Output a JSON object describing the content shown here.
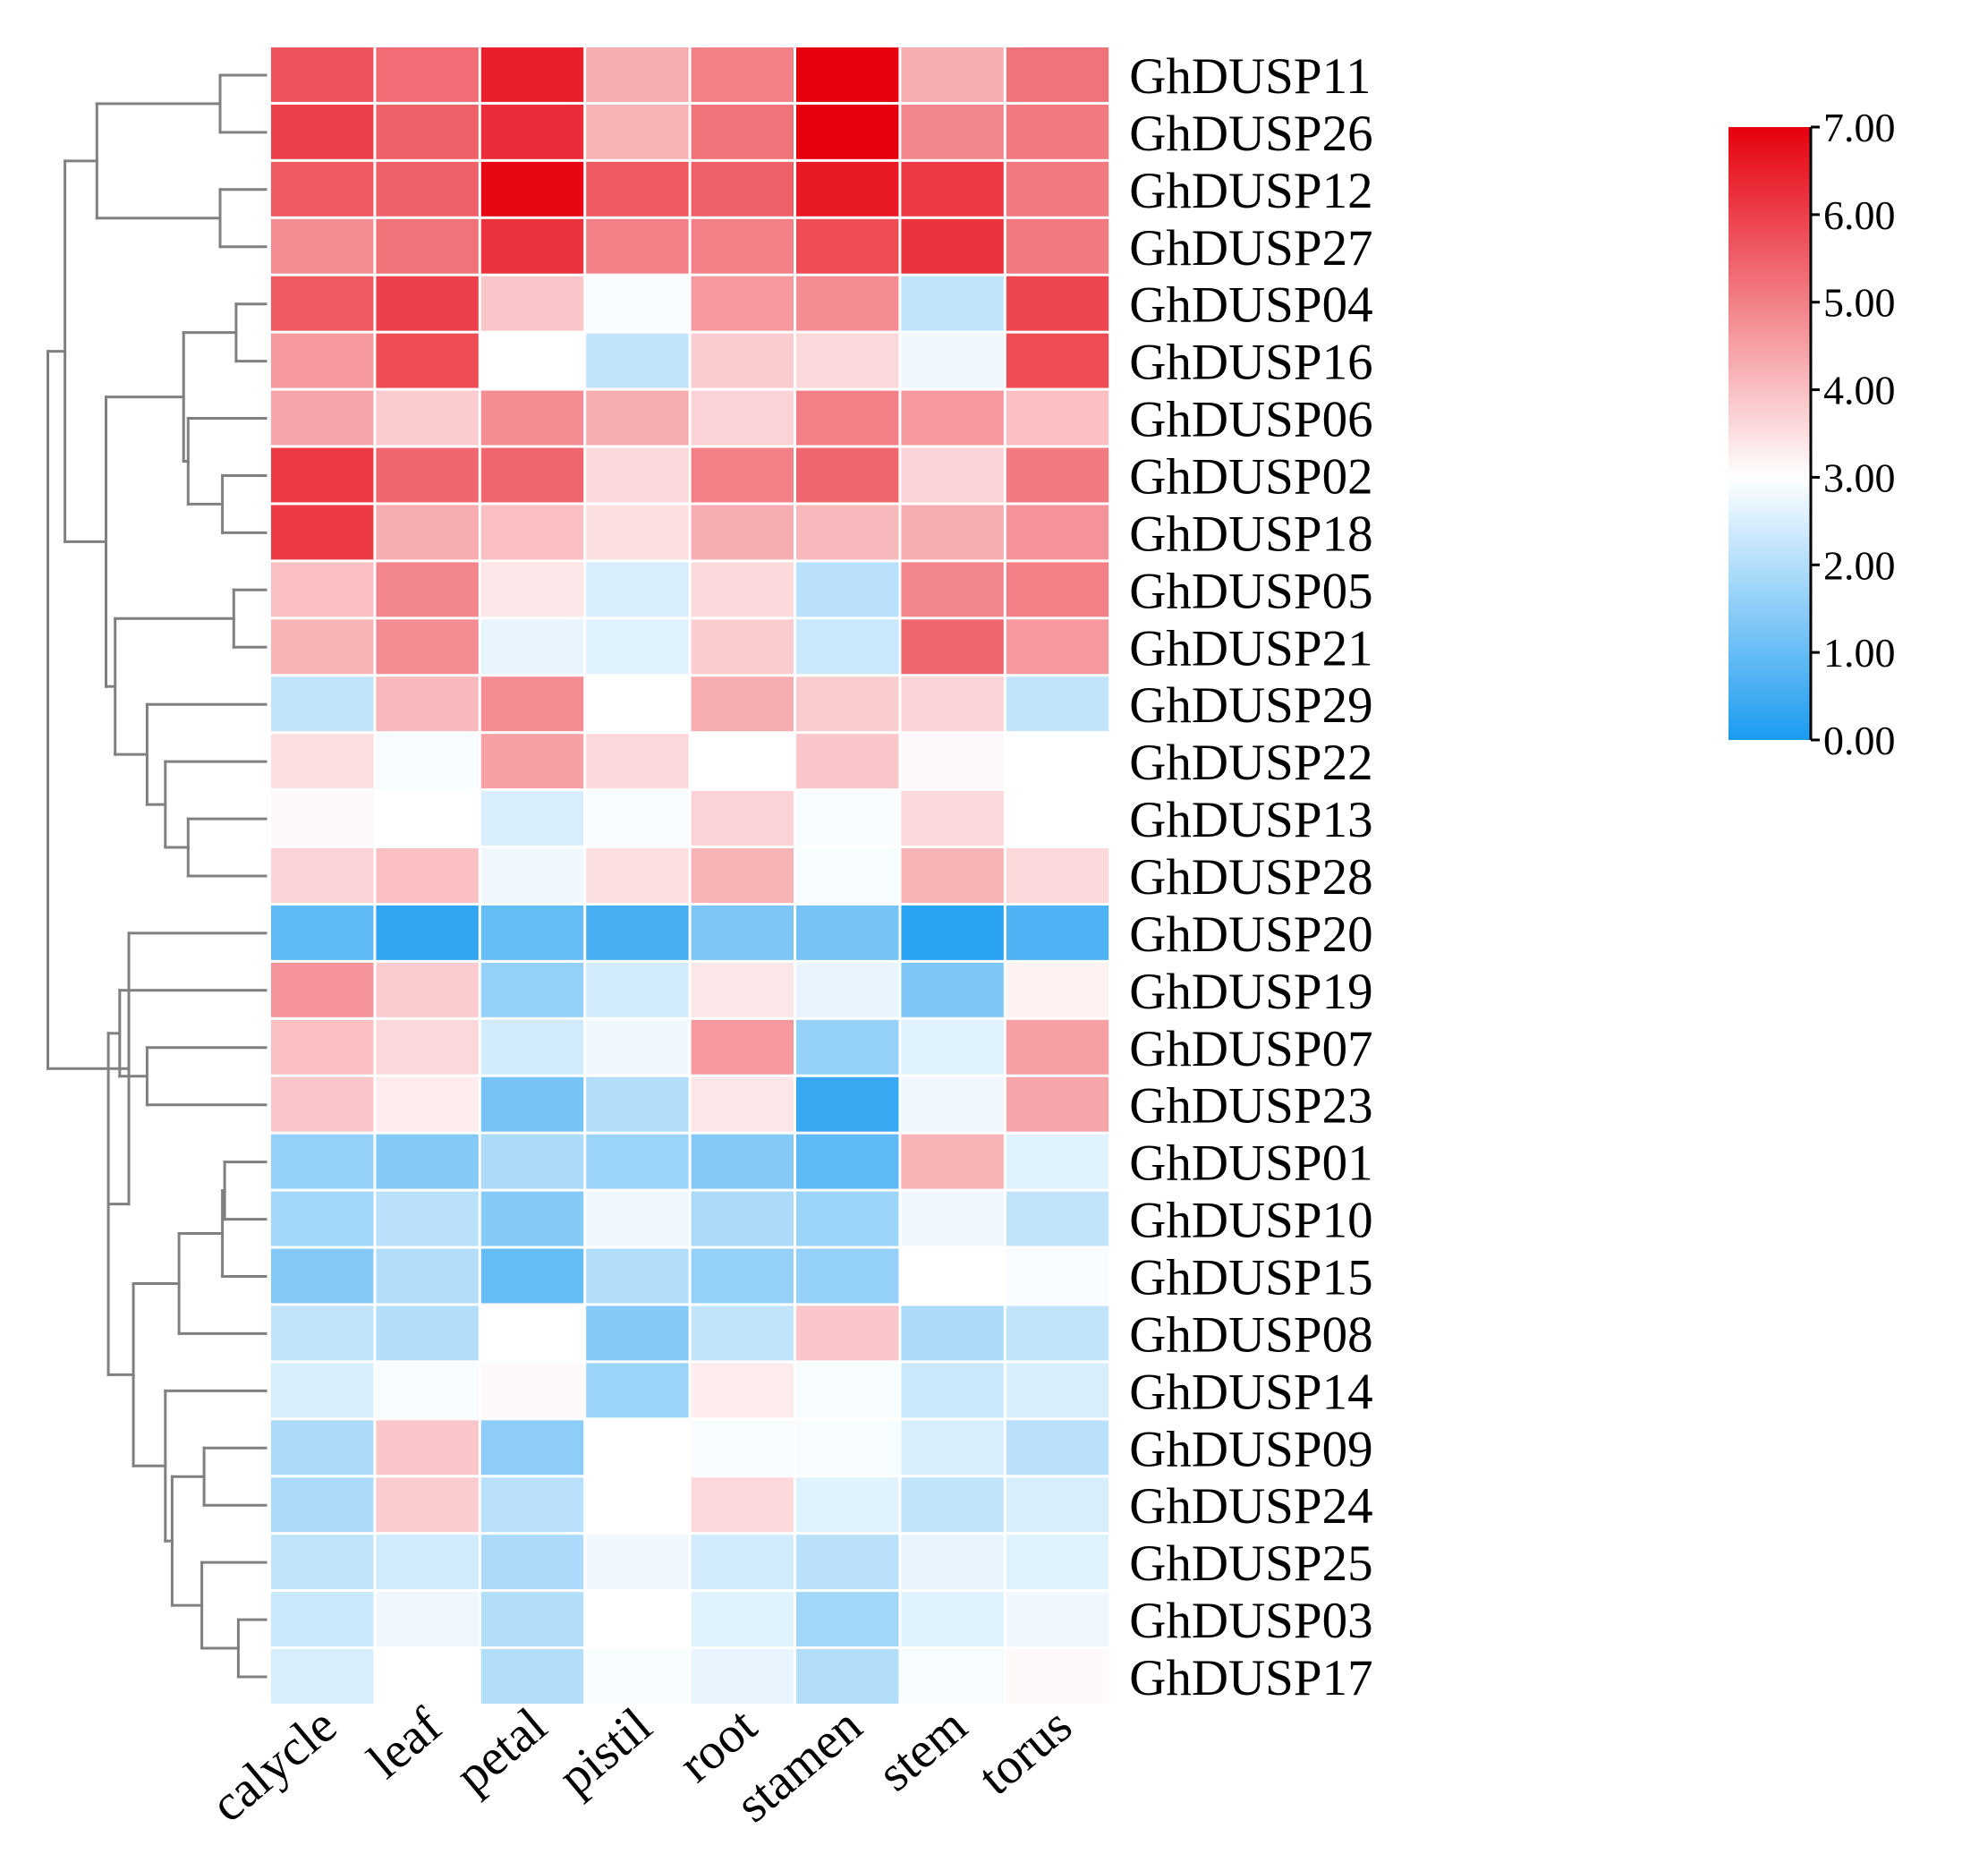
{
  "chart_data": {
    "type": "heatmap",
    "title": "",
    "columns": [
      "calycle",
      "leaf",
      "petal",
      "pistil",
      "root",
      "stamen",
      "stem",
      "torus"
    ],
    "rows": [
      "GhDUSP11",
      "GhDUSP26",
      "GhDUSP12",
      "GhDUSP27",
      "GhDUSP04",
      "GhDUSP16",
      "GhDUSP06",
      "GhDUSP02",
      "GhDUSP18",
      "GhDUSP05",
      "GhDUSP21",
      "GhDUSP29",
      "GhDUSP22",
      "GhDUSP13",
      "GhDUSP28",
      "GhDUSP20",
      "GhDUSP19",
      "GhDUSP07",
      "GhDUSP23",
      "GhDUSP01",
      "GhDUSP10",
      "GhDUSP15",
      "GhDUSP08",
      "GhDUSP14",
      "GhDUSP09",
      "GhDUSP24",
      "GhDUSP25",
      "GhDUSP03",
      "GhDUSP17"
    ],
    "values": [
      [
        5.7,
        5.3,
        6.5,
        4.3,
        5.0,
        7.0,
        4.3,
        5.2
      ],
      [
        6.0,
        5.5,
        6.3,
        4.2,
        5.2,
        7.0,
        4.9,
        5.1
      ],
      [
        5.6,
        5.5,
        6.9,
        5.6,
        5.5,
        6.6,
        6.1,
        5.1
      ],
      [
        4.8,
        5.2,
        6.2,
        5.0,
        5.0,
        5.8,
        6.2,
        5.1
      ],
      [
        5.6,
        6.0,
        3.9,
        2.9,
        4.6,
        4.8,
        2.2,
        5.9
      ],
      [
        4.6,
        5.8,
        3.0,
        2.2,
        3.8,
        3.6,
        2.8,
        5.8
      ],
      [
        4.4,
        3.8,
        4.8,
        4.3,
        3.7,
        5.0,
        4.6,
        4.0
      ],
      [
        6.1,
        5.4,
        5.4,
        3.6,
        5.0,
        5.4,
        3.7,
        5.1
      ],
      [
        6.1,
        4.3,
        4.0,
        3.5,
        4.3,
        4.1,
        4.3,
        4.7
      ],
      [
        4.0,
        4.9,
        3.4,
        2.5,
        3.6,
        2.1,
        4.9,
        5.0
      ],
      [
        4.2,
        4.8,
        2.7,
        2.6,
        3.8,
        2.3,
        5.4,
        4.6
      ],
      [
        2.2,
        4.1,
        4.8,
        3.0,
        4.3,
        3.8,
        3.7,
        2.2
      ],
      [
        3.5,
        2.9,
        4.5,
        3.6,
        3.0,
        3.9,
        3.1,
        3.0
      ],
      [
        3.1,
        3.0,
        2.5,
        2.9,
        3.7,
        2.9,
        3.6,
        3.0
      ],
      [
        3.7,
        4.0,
        2.8,
        3.5,
        4.2,
        2.9,
        4.2,
        3.6
      ],
      [
        0.9,
        0.3,
        1.0,
        0.6,
        1.3,
        1.2,
        0.2,
        0.7
      ],
      [
        4.7,
        3.8,
        1.6,
        2.4,
        3.4,
        2.7,
        1.3,
        3.2
      ],
      [
        4.0,
        3.6,
        2.4,
        2.8,
        4.6,
        1.6,
        2.6,
        4.5
      ],
      [
        3.9,
        3.3,
        1.2,
        2.0,
        3.4,
        0.4,
        2.8,
        4.4
      ],
      [
        1.6,
        1.4,
        1.9,
        1.7,
        1.4,
        0.9,
        4.2,
        2.6
      ],
      [
        1.8,
        2.1,
        1.4,
        2.8,
        1.9,
        1.7,
        2.8,
        2.2
      ],
      [
        1.4,
        2.0,
        1.0,
        2.0,
        1.6,
        1.6,
        3.0,
        2.9
      ],
      [
        2.2,
        2.0,
        3.0,
        1.4,
        2.2,
        3.9,
        1.9,
        2.2
      ],
      [
        2.5,
        2.9,
        3.1,
        1.7,
        3.3,
        2.9,
        2.3,
        2.5
      ],
      [
        1.9,
        3.9,
        1.5,
        3.0,
        2.9,
        2.9,
        2.5,
        2.1
      ],
      [
        1.9,
        3.8,
        2.1,
        3.0,
        3.6,
        2.6,
        2.2,
        2.5
      ],
      [
        2.2,
        2.4,
        1.9,
        2.8,
        2.4,
        2.1,
        2.7,
        2.6
      ],
      [
        2.3,
        2.8,
        2.0,
        3.0,
        2.6,
        1.8,
        2.6,
        2.8
      ],
      [
        2.5,
        3.0,
        2.0,
        2.9,
        2.7,
        2.0,
        2.9,
        3.1
      ]
    ],
    "colorbar": {
      "min": 0.0,
      "max": 7.0,
      "mid": 3.0,
      "ticks": [
        "0.00",
        "1.00",
        "2.00",
        "3.00",
        "4.00",
        "5.00",
        "6.00",
        "7.00"
      ],
      "colors": {
        "low": "#1a9bf0",
        "mid": "#ffffff",
        "high": "#e6000e"
      }
    },
    "dendrogram": {
      "side": "left",
      "color": "#808080",
      "leaf_order": [
        "GhDUSP11",
        "GhDUSP26",
        "GhDUSP12",
        "GhDUSP27",
        "GhDUSP04",
        "GhDUSP16",
        "GhDUSP06",
        "GhDUSP02",
        "GhDUSP18",
        "GhDUSP05",
        "GhDUSP21",
        "GhDUSP29",
        "GhDUSP22",
        "GhDUSP13",
        "GhDUSP28",
        "GhDUSP20",
        "GhDUSP19",
        "GhDUSP07",
        "GhDUSP23",
        "GhDUSP01",
        "GhDUSP10",
        "GhDUSP15",
        "GhDUSP08",
        "GhDUSP14",
        "GhDUSP09",
        "GhDUSP24",
        "GhDUSP25",
        "GhDUSP03",
        "GhDUSP17"
      ]
    }
  }
}
